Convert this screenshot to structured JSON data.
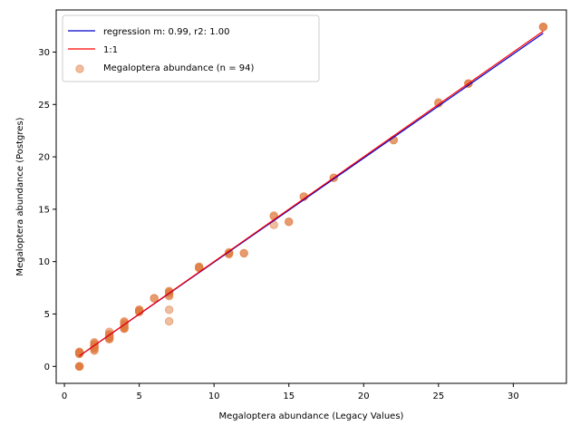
{
  "chart_data": {
    "type": "scatter",
    "xlabel": "Megaloptera abundance (Legacy Values)",
    "ylabel": "Megaloptera abundance (Postgres)",
    "xlim": [
      -0.55,
      33.55
    ],
    "ylim": [
      -1.62,
      34.02
    ],
    "x_ticks": [
      0,
      5,
      10,
      15,
      20,
      25,
      30
    ],
    "y_ticks": [
      0,
      5,
      10,
      15,
      20,
      25,
      30
    ],
    "legend_position": "top-left",
    "series": [
      {
        "name": "regression m: 0.99, r2: 1.00",
        "kind": "line",
        "color": "#0000cc",
        "x": [
          1,
          32
        ],
        "y": [
          1.0,
          31.8
        ]
      },
      {
        "name": "1:1",
        "kind": "line",
        "color": "#ff0000",
        "x": [
          1,
          32
        ],
        "y": [
          1,
          32
        ]
      },
      {
        "name": "Megaloptera abundance (n = 94)",
        "kind": "scatter",
        "color": "#e07b3f",
        "points": [
          {
            "x": 1,
            "y": 0
          },
          {
            "x": 1,
            "y": 0
          },
          {
            "x": 1,
            "y": 0
          },
          {
            "x": 1,
            "y": 0
          },
          {
            "x": 1,
            "y": 0
          },
          {
            "x": 1,
            "y": 0
          },
          {
            "x": 1,
            "y": 1.3
          },
          {
            "x": 1,
            "y": 1.3
          },
          {
            "x": 1,
            "y": 1.3
          },
          {
            "x": 1,
            "y": 1.3
          },
          {
            "x": 1,
            "y": 1.3
          },
          {
            "x": 1,
            "y": 1.3
          },
          {
            "x": 1,
            "y": 1.3
          },
          {
            "x": 1,
            "y": 1.2
          },
          {
            "x": 1,
            "y": 1.4
          },
          {
            "x": 1,
            "y": 1.2
          },
          {
            "x": 2,
            "y": 1.5
          },
          {
            "x": 2,
            "y": 1.7
          },
          {
            "x": 2,
            "y": 1.8
          },
          {
            "x": 2,
            "y": 1.9
          },
          {
            "x": 2,
            "y": 2.0
          },
          {
            "x": 2,
            "y": 2.3
          },
          {
            "x": 2,
            "y": 2.2
          },
          {
            "x": 2,
            "y": 2.1
          },
          {
            "x": 2,
            "y": 1.6
          },
          {
            "x": 2,
            "y": 1.9
          },
          {
            "x": 3,
            "y": 2.6
          },
          {
            "x": 3,
            "y": 2.7
          },
          {
            "x": 3,
            "y": 2.8
          },
          {
            "x": 3,
            "y": 2.9
          },
          {
            "x": 3,
            "y": 3.0
          },
          {
            "x": 3,
            "y": 3.3
          },
          {
            "x": 3,
            "y": 2.7
          },
          {
            "x": 3,
            "y": 2.8
          },
          {
            "x": 3,
            "y": 3.1
          },
          {
            "x": 3,
            "y": 2.6
          },
          {
            "x": 4,
            "y": 3.6
          },
          {
            "x": 4,
            "y": 3.7
          },
          {
            "x": 4,
            "y": 3.8
          },
          {
            "x": 4,
            "y": 4.0
          },
          {
            "x": 4,
            "y": 4.2
          },
          {
            "x": 4,
            "y": 4.3
          },
          {
            "x": 4,
            "y": 3.6
          },
          {
            "x": 4,
            "y": 3.9
          },
          {
            "x": 4,
            "y": 4.1
          },
          {
            "x": 4,
            "y": 3.7
          },
          {
            "x": 5,
            "y": 5.2
          },
          {
            "x": 5,
            "y": 5.3
          },
          {
            "x": 5,
            "y": 5.4
          },
          {
            "x": 5,
            "y": 5.3
          },
          {
            "x": 5,
            "y": 5.2
          },
          {
            "x": 5,
            "y": 5.4
          },
          {
            "x": 6,
            "y": 6.5
          },
          {
            "x": 6,
            "y": 6.5
          },
          {
            "x": 7,
            "y": 7.1
          },
          {
            "x": 7,
            "y": 7.2
          },
          {
            "x": 7,
            "y": 7.0
          },
          {
            "x": 7,
            "y": 6.8
          },
          {
            "x": 7,
            "y": 6.7
          },
          {
            "x": 7,
            "y": 5.4
          },
          {
            "x": 7,
            "y": 4.3
          },
          {
            "x": 7,
            "y": 7.1
          },
          {
            "x": 9,
            "y": 9.4
          },
          {
            "x": 9,
            "y": 9.5
          },
          {
            "x": 9,
            "y": 9.5
          },
          {
            "x": 9,
            "y": 9.4
          },
          {
            "x": 11,
            "y": 10.7
          },
          {
            "x": 11,
            "y": 10.8
          },
          {
            "x": 11,
            "y": 10.9
          },
          {
            "x": 11,
            "y": 10.8
          },
          {
            "x": 12,
            "y": 10.8
          },
          {
            "x": 12,
            "y": 10.8
          },
          {
            "x": 14,
            "y": 14.4
          },
          {
            "x": 14,
            "y": 13.5
          },
          {
            "x": 14,
            "y": 14.3
          },
          {
            "x": 15,
            "y": 13.8
          },
          {
            "x": 15,
            "y": 13.8
          },
          {
            "x": 16,
            "y": 16.2
          },
          {
            "x": 16,
            "y": 16.2
          },
          {
            "x": 18,
            "y": 18.0
          },
          {
            "x": 18,
            "y": 18.0
          },
          {
            "x": 22,
            "y": 21.6
          },
          {
            "x": 22,
            "y": 21.6
          },
          {
            "x": 25,
            "y": 25.2
          },
          {
            "x": 25,
            "y": 25.1
          },
          {
            "x": 27,
            "y": 27.0
          },
          {
            "x": 27,
            "y": 27.0
          },
          {
            "x": 27,
            "y": 27.0
          },
          {
            "x": 32,
            "y": 32.4
          },
          {
            "x": 32,
            "y": 32.4
          },
          {
            "x": 32,
            "y": 32.4
          },
          {
            "x": 3,
            "y": 2.9
          },
          {
            "x": 2,
            "y": 1.8
          },
          {
            "x": 1,
            "y": 1.3
          }
        ]
      }
    ]
  }
}
